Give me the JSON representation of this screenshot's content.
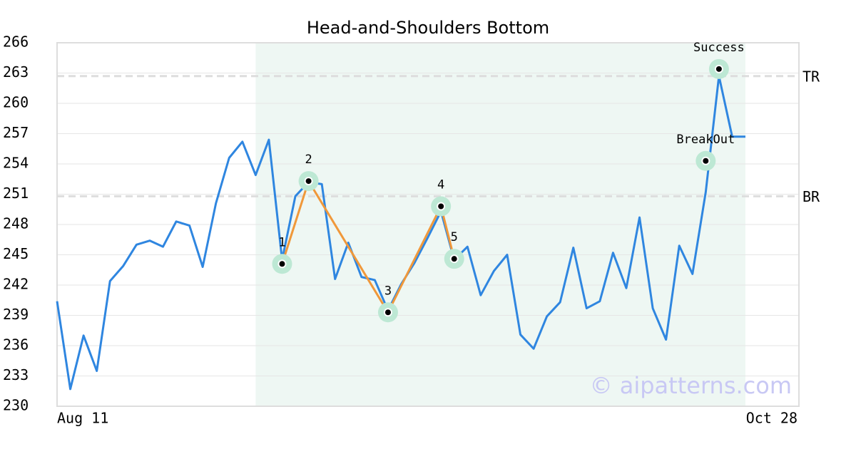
{
  "chart_data": {
    "type": "line",
    "title": "Head-and-Shoulders Bottom",
    "categories": [
      "Aug 11",
      null,
      null,
      null,
      null,
      null,
      null,
      null,
      null,
      null,
      null,
      null,
      null,
      null,
      null,
      null,
      null,
      null,
      null,
      null,
      null,
      null,
      null,
      null,
      null,
      null,
      null,
      null,
      null,
      null,
      null,
      null,
      null,
      null,
      null,
      null,
      null,
      null,
      null,
      null,
      null,
      null,
      null,
      null,
      null,
      null,
      null,
      null,
      null,
      null,
      null,
      null,
      "Oct 28"
    ],
    "values": [
      240.4,
      231.7,
      237.0,
      233.5,
      242.4,
      243.9,
      246.0,
      246.4,
      245.8,
      248.3,
      247.9,
      243.8,
      250.1,
      254.6,
      256.2,
      252.9,
      256.4,
      244.5,
      250.8,
      252.2,
      252.0,
      242.6,
      246.2,
      242.8,
      242.5,
      239.5,
      242.1,
      244.2,
      246.7,
      249.3,
      244.5,
      245.8,
      241.0,
      243.4,
      245.0,
      237.1,
      235.7,
      238.9,
      240.3,
      245.7,
      239.7,
      240.4,
      245.2,
      241.7,
      248.7,
      239.7,
      236.6,
      245.9,
      243.1,
      251.2,
      262.7,
      256.7,
      256.7
    ],
    "color": "#2f86e0",
    "ylim": [
      230,
      266
    ],
    "yticks": [
      230,
      233,
      236,
      239,
      242,
      245,
      248,
      251,
      254,
      257,
      260,
      263,
      266
    ],
    "grid": true,
    "shade": {
      "start": 15,
      "end": 52,
      "color": "#eef7f3"
    },
    "levels": [
      {
        "label": "TR",
        "value": 262.7
      },
      {
        "label": "BR",
        "value": 250.8
      }
    ],
    "pattern": {
      "color": "#f0983a",
      "marker_color": "#bde8d4",
      "points": [
        {
          "label": "1",
          "x": 17,
          "value": 244.1
        },
        {
          "label": "2",
          "x": 19,
          "value": 252.3
        },
        {
          "label": "3",
          "x": 25,
          "value": 239.3
        },
        {
          "label": "4",
          "x": 29,
          "value": 249.8
        },
        {
          "label": "5",
          "x": 30,
          "value": 244.6
        }
      ]
    },
    "annotations": [
      {
        "label": "BreakOut",
        "x": 49,
        "value": 254.3
      },
      {
        "label": "Success",
        "x": 50,
        "value": 263.4
      }
    ],
    "watermark": "© aipatterns.com"
  }
}
